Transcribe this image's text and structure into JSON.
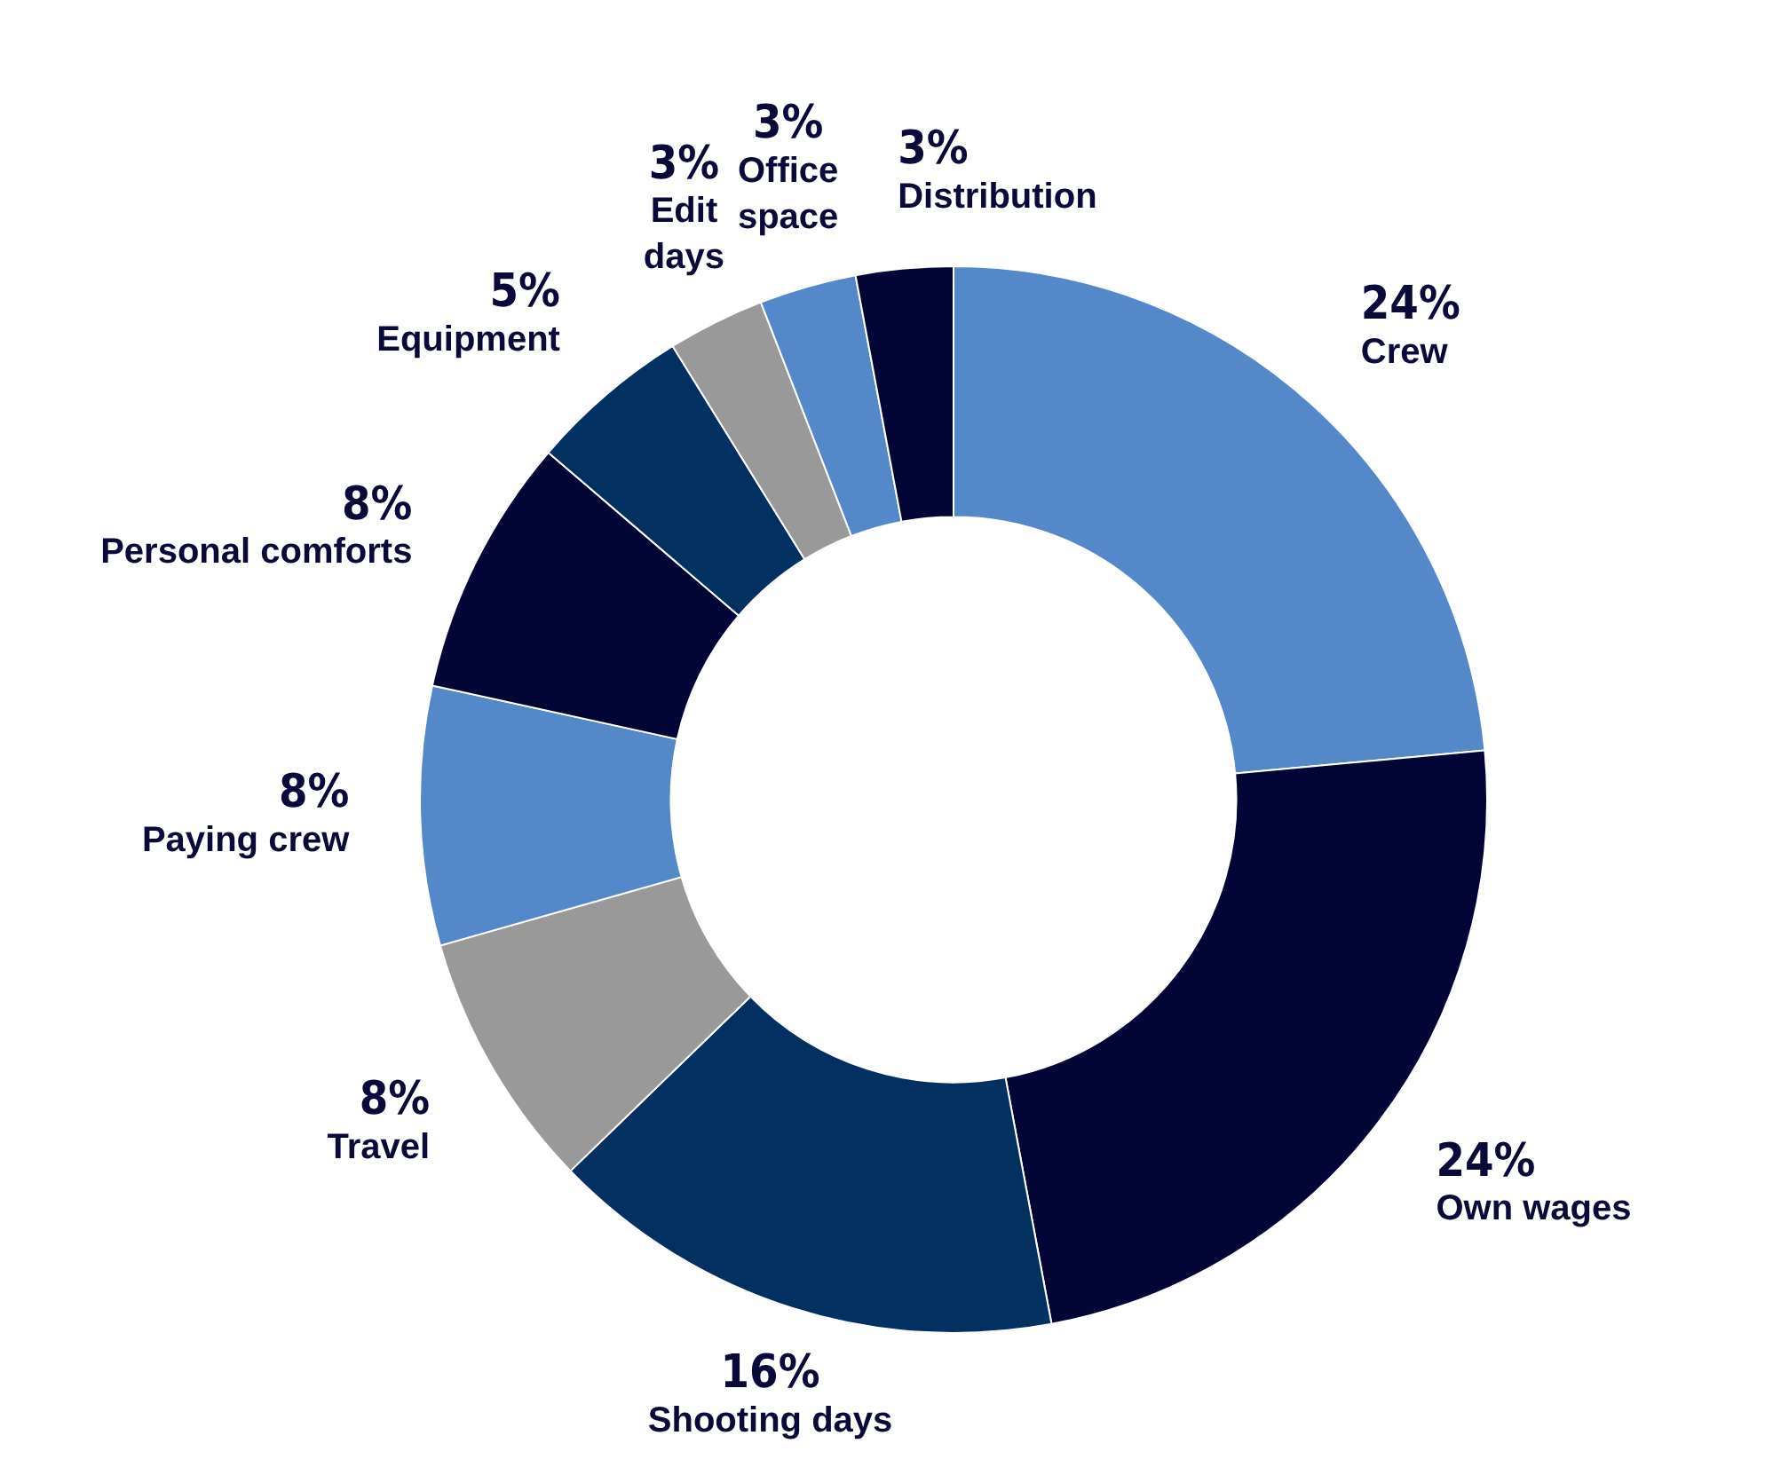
{
  "chart_data": {
    "type": "donut",
    "categories": [
      "Crew",
      "Own wages",
      "Shooting days",
      "Travel",
      "Paying crew",
      "Personal comforts",
      "Equipment",
      "Edit days",
      "Office space",
      "Distribution"
    ],
    "values": [
      24,
      24,
      16,
      8,
      8,
      8,
      5,
      3,
      3,
      3
    ],
    "colors": [
      "#5588c8",
      "#020535",
      "#023060",
      "#999999",
      "#5588c8",
      "#020535",
      "#023060",
      "#999999",
      "#5588c8",
      "#020535"
    ],
    "value_labels": [
      "24%",
      "24%",
      "16%",
      "8%",
      "8%",
      "8%",
      "5%",
      "3%",
      "3%",
      "3%"
    ],
    "legend": false
  }
}
